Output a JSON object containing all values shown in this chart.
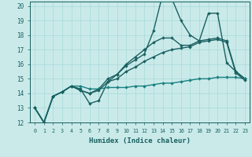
{
  "xlabel": "Humidex (Indice chaleur)",
  "xlim": [
    -0.5,
    23.5
  ],
  "ylim": [
    12,
    20.3
  ],
  "yticks": [
    12,
    13,
    14,
    15,
    16,
    17,
    18,
    19,
    20
  ],
  "xticks": [
    0,
    1,
    2,
    3,
    4,
    5,
    6,
    7,
    8,
    9,
    10,
    11,
    12,
    13,
    14,
    15,
    16,
    17,
    18,
    19,
    20,
    21,
    22,
    23
  ],
  "bg_color": "#caeaea",
  "grid_color": "#a8d8d8",
  "line_color_dark": "#1a6060",
  "line_color_mid": "#1a8080",
  "series": [
    [
      13.0,
      12.0,
      13.8,
      14.1,
      14.5,
      14.3,
      13.3,
      13.5,
      14.8,
      15.3,
      15.9,
      16.3,
      16.7,
      18.3,
      20.8,
      20.5,
      19.0,
      18.0,
      17.6,
      19.5,
      19.5,
      16.1,
      15.5,
      15.0
    ],
    [
      13.0,
      12.0,
      13.8,
      14.1,
      14.5,
      14.2,
      14.0,
      14.3,
      15.0,
      15.3,
      16.0,
      16.5,
      17.0,
      17.5,
      17.8,
      17.8,
      17.3,
      17.3,
      17.6,
      17.7,
      17.8,
      17.6,
      15.5,
      15.0
    ],
    [
      13.0,
      12.0,
      13.8,
      14.1,
      14.5,
      14.5,
      14.3,
      14.3,
      14.4,
      14.4,
      14.4,
      14.5,
      14.5,
      14.6,
      14.7,
      14.7,
      14.8,
      14.9,
      15.0,
      15.0,
      15.1,
      15.1,
      15.1,
      15.0
    ],
    [
      13.0,
      12.0,
      13.8,
      14.1,
      14.5,
      14.2,
      14.0,
      14.2,
      14.8,
      15.0,
      15.5,
      15.8,
      16.2,
      16.5,
      16.8,
      17.0,
      17.1,
      17.2,
      17.5,
      17.6,
      17.7,
      17.5,
      15.4,
      14.9
    ]
  ],
  "series_colors": [
    "#1a6060",
    "#1a6060",
    "#1a8080",
    "#1a6060"
  ],
  "series_lw": [
    1.0,
    1.0,
    1.0,
    1.0
  ],
  "marker": "D",
  "marker_size": 2.0
}
